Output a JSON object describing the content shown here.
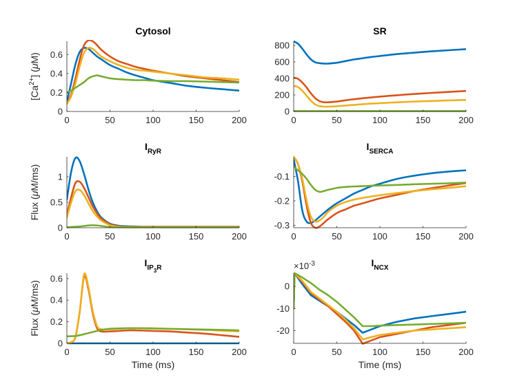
{
  "figure": {
    "series_colors": [
      "#0072BD",
      "#D95319",
      "#EDB120",
      "#77AC30"
    ]
  },
  "chart_data": [
    {
      "id": "cytosol",
      "type": "line",
      "title": "Cytosol",
      "title_main": "Cytosol",
      "title_sub": "",
      "title_subsub": "",
      "title_tail": "",
      "xlabel": "",
      "ylabel": "[Ca2+] (μM)",
      "ylabel_parts": [
        "[Ca",
        "2+",
        "] (",
        "μ",
        "M)"
      ],
      "xlim": [
        0,
        200
      ],
      "ylim": [
        0,
        0.74
      ],
      "xticks": [
        0,
        50,
        100,
        150,
        200
      ],
      "yticks": [
        0,
        0.2,
        0.4,
        0.6
      ],
      "ytick_labels": [
        "0",
        "0.2",
        "0.4",
        "0.6"
      ],
      "exponent_label": "",
      "x": [
        0,
        5,
        10,
        15,
        20,
        25,
        30,
        35,
        40,
        50,
        60,
        70,
        80,
        90,
        100,
        120,
        140,
        160,
        180,
        200
      ],
      "series": [
        {
          "name": "series-1",
          "values": [
            0.1,
            0.3,
            0.5,
            0.63,
            0.67,
            0.66,
            0.62,
            0.58,
            0.55,
            0.49,
            0.45,
            0.41,
            0.38,
            0.355,
            0.33,
            0.3,
            0.27,
            0.25,
            0.235,
            0.22
          ]
        },
        {
          "name": "series-2",
          "values": [
            0.08,
            0.18,
            0.35,
            0.55,
            0.7,
            0.75,
            0.74,
            0.7,
            0.65,
            0.58,
            0.53,
            0.5,
            0.47,
            0.45,
            0.43,
            0.4,
            0.37,
            0.35,
            0.33,
            0.31
          ]
        },
        {
          "name": "series-3",
          "values": [
            0.08,
            0.16,
            0.3,
            0.48,
            0.62,
            0.67,
            0.66,
            0.62,
            0.58,
            0.53,
            0.49,
            0.46,
            0.44,
            0.43,
            0.42,
            0.4,
            0.38,
            0.36,
            0.35,
            0.335
          ]
        },
        {
          "name": "series-4",
          "values": [
            0.2,
            0.22,
            0.25,
            0.28,
            0.31,
            0.35,
            0.37,
            0.38,
            0.37,
            0.35,
            0.34,
            0.335,
            0.33,
            0.33,
            0.325,
            0.32,
            0.32,
            0.315,
            0.31,
            0.305
          ]
        }
      ]
    },
    {
      "id": "sr",
      "type": "line",
      "title": "SR",
      "title_main": "SR",
      "title_sub": "",
      "title_subsub": "",
      "title_tail": "",
      "xlabel": "",
      "ylabel": "",
      "ylabel_parts": [],
      "xlim": [
        0,
        200
      ],
      "ylim": [
        0,
        850
      ],
      "xticks": [
        0,
        50,
        100,
        150,
        200
      ],
      "yticks": [
        0,
        200,
        400,
        600,
        800
      ],
      "ytick_labels": [
        "0",
        "200",
        "400",
        "600",
        "800"
      ],
      "exponent_label": "",
      "x": [
        0,
        5,
        10,
        15,
        20,
        25,
        30,
        35,
        40,
        50,
        60,
        70,
        80,
        90,
        100,
        120,
        140,
        160,
        180,
        200
      ],
      "series": [
        {
          "name": "series-1",
          "values": [
            850,
            820,
            760,
            690,
            630,
            595,
            585,
            580,
            580,
            590,
            610,
            630,
            645,
            660,
            672,
            695,
            712,
            728,
            742,
            755
          ]
        },
        {
          "name": "series-2",
          "values": [
            410,
            395,
            350,
            290,
            220,
            160,
            125,
            112,
            112,
            120,
            135,
            148,
            160,
            170,
            180,
            197,
            212,
            225,
            237,
            248
          ]
        },
        {
          "name": "series-3",
          "values": [
            310,
            295,
            250,
            190,
            130,
            85,
            65,
            58,
            58,
            63,
            72,
            80,
            88,
            95,
            101,
            111,
            120,
            127,
            134,
            140
          ]
        },
        {
          "name": "series-4",
          "values": [
            5,
            5,
            5,
            5,
            5,
            5,
            5,
            5,
            5,
            5,
            5,
            5,
            5,
            5,
            5,
            5,
            5,
            5,
            5,
            5
          ]
        }
      ]
    },
    {
      "id": "iryr",
      "type": "line",
      "title": "I_RyR",
      "title_main": "I",
      "title_sub": "RyR",
      "title_subsub": "",
      "title_tail": "",
      "xlabel": "",
      "ylabel": "Flux (μM/ms)",
      "ylabel_parts": [
        "Flux (",
        "",
        "",
        "μ",
        "M/ms)"
      ],
      "xlim": [
        0,
        200
      ],
      "ylim": [
        0,
        1.39
      ],
      "xticks": [
        0,
        50,
        100,
        150,
        200
      ],
      "yticks": [
        0,
        0.5,
        1
      ],
      "ytick_labels": [
        "0",
        "0.5",
        "1"
      ],
      "exponent_label": "",
      "x": [
        0,
        5,
        10,
        15,
        20,
        25,
        30,
        35,
        40,
        50,
        60,
        70,
        80,
        90,
        100,
        120,
        140,
        160,
        180,
        200
      ],
      "series": [
        {
          "name": "series-1",
          "values": [
            0.55,
            1.1,
            1.37,
            1.3,
            1.05,
            0.75,
            0.5,
            0.32,
            0.2,
            0.08,
            0.04,
            0.03,
            0.025,
            0.02,
            0.02,
            0.02,
            0.02,
            0.02,
            0.02,
            0.02
          ]
        },
        {
          "name": "series-2",
          "values": [
            0.25,
            0.6,
            0.88,
            0.9,
            0.78,
            0.6,
            0.42,
            0.28,
            0.18,
            0.07,
            0.03,
            0.02,
            0.02,
            0.02,
            0.02,
            0.02,
            0.02,
            0.02,
            0.02,
            0.02
          ]
        },
        {
          "name": "series-3",
          "values": [
            0.2,
            0.5,
            0.72,
            0.74,
            0.64,
            0.48,
            0.33,
            0.22,
            0.14,
            0.05,
            0.02,
            0.015,
            0.015,
            0.015,
            0.015,
            0.015,
            0.015,
            0.015,
            0.015,
            0.015
          ]
        },
        {
          "name": "series-4",
          "values": [
            0.01,
            0.015,
            0.02,
            0.025,
            0.035,
            0.045,
            0.05,
            0.045,
            0.035,
            0.015,
            0.01,
            0.01,
            0.01,
            0.01,
            0.01,
            0.01,
            0.01,
            0.01,
            0.01,
            0.01
          ]
        }
      ]
    },
    {
      "id": "iserca",
      "type": "line",
      "title": "I_SERCA",
      "title_main": "I",
      "title_sub": "SERCA",
      "title_subsub": "",
      "title_tail": "",
      "xlabel": "",
      "ylabel": "",
      "ylabel_parts": [],
      "xlim": [
        0,
        200
      ],
      "ylim": [
        -0.31,
        -0.02
      ],
      "xticks": [
        0,
        50,
        100,
        150,
        200
      ],
      "yticks": [
        -0.3,
        -0.2,
        -0.1
      ],
      "ytick_labels": [
        "-0.3",
        "-0.2",
        "-0.1"
      ],
      "exponent_label": "",
      "x": [
        0,
        5,
        10,
        15,
        20,
        25,
        30,
        35,
        40,
        50,
        60,
        70,
        80,
        90,
        100,
        120,
        140,
        160,
        180,
        200
      ],
      "series": [
        {
          "name": "series-1",
          "values": [
            -0.03,
            -0.12,
            -0.24,
            -0.285,
            -0.29,
            -0.28,
            -0.265,
            -0.25,
            -0.235,
            -0.21,
            -0.19,
            -0.17,
            -0.155,
            -0.14,
            -0.13,
            -0.11,
            -0.097,
            -0.087,
            -0.08,
            -0.075
          ]
        },
        {
          "name": "series-2",
          "values": [
            -0.02,
            -0.05,
            -0.12,
            -0.22,
            -0.29,
            -0.31,
            -0.305,
            -0.29,
            -0.275,
            -0.25,
            -0.235,
            -0.22,
            -0.21,
            -0.2,
            -0.19,
            -0.175,
            -0.16,
            -0.148,
            -0.137,
            -0.127
          ]
        },
        {
          "name": "series-3",
          "values": [
            -0.02,
            -0.05,
            -0.11,
            -0.2,
            -0.265,
            -0.285,
            -0.28,
            -0.265,
            -0.245,
            -0.22,
            -0.205,
            -0.195,
            -0.188,
            -0.182,
            -0.177,
            -0.168,
            -0.16,
            -0.153,
            -0.147,
            -0.14
          ]
        },
        {
          "name": "series-4",
          "values": [
            -0.06,
            -0.075,
            -0.09,
            -0.11,
            -0.135,
            -0.155,
            -0.163,
            -0.16,
            -0.155,
            -0.147,
            -0.143,
            -0.141,
            -0.14,
            -0.138,
            -0.137,
            -0.135,
            -0.132,
            -0.13,
            -0.128,
            -0.125
          ]
        }
      ]
    },
    {
      "id": "iip3r",
      "type": "line",
      "title": "I_IP3R",
      "title_main": "I",
      "title_sub": "IP",
      "title_subsub": "3",
      "title_tail": "R",
      "xlabel": "Time (ms)",
      "ylabel": "Flux (μM/ms)",
      "ylabel_parts": [
        "Flux (",
        "",
        "",
        "μ",
        "M/ms)"
      ],
      "xlim": [
        0,
        200
      ],
      "ylim": [
        0,
        0.65
      ],
      "xticks": [
        0,
        50,
        100,
        150,
        200
      ],
      "yticks": [
        0,
        0.2,
        0.4,
        0.6
      ],
      "ytick_labels": [
        "0",
        "0.2",
        "0.4",
        "0.6"
      ],
      "exponent_label": "",
      "x": [
        0,
        5,
        10,
        15,
        20,
        25,
        30,
        35,
        40,
        50,
        60,
        70,
        80,
        90,
        100,
        120,
        140,
        160,
        180,
        200
      ],
      "series": [
        {
          "name": "series-1",
          "values": [
            0,
            0,
            0,
            0,
            0,
            0,
            0,
            0,
            0,
            0,
            0,
            0,
            0,
            0,
            0,
            0,
            0,
            0,
            0,
            0
          ]
        },
        {
          "name": "series-2",
          "values": [
            0,
            0.01,
            0.06,
            0.3,
            0.62,
            0.5,
            0.28,
            0.14,
            0.11,
            0.11,
            0.115,
            0.12,
            0.12,
            0.118,
            0.115,
            0.11,
            0.1,
            0.09,
            0.075,
            0.06
          ]
        },
        {
          "name": "series-3",
          "values": [
            0,
            0.01,
            0.06,
            0.3,
            0.64,
            0.52,
            0.3,
            0.16,
            0.13,
            0.13,
            0.135,
            0.14,
            0.14,
            0.14,
            0.14,
            0.135,
            0.13,
            0.125,
            0.117,
            0.11
          ]
        },
        {
          "name": "series-4",
          "values": [
            0.065,
            0.066,
            0.068,
            0.075,
            0.085,
            0.095,
            0.105,
            0.115,
            0.125,
            0.135,
            0.138,
            0.14,
            0.14,
            0.139,
            0.137,
            0.134,
            0.131,
            0.128,
            0.125,
            0.12
          ]
        }
      ]
    },
    {
      "id": "incx",
      "type": "line",
      "title": "I_NCX",
      "title_main": "I",
      "title_sub": "NCX",
      "title_subsub": "",
      "title_tail": "",
      "xlabel": "Time (ms)",
      "ylabel": "",
      "ylabel_parts": [],
      "xlim": [
        0,
        200
      ],
      "ylim": [
        -25.8,
        6
      ],
      "xticks": [
        0,
        50,
        100,
        150,
        200
      ],
      "yticks": [
        -20,
        -10,
        0
      ],
      "ytick_labels": [
        "-20",
        "-10",
        "0"
      ],
      "exponent_label": "×10-3",
      "exponent_base": "×10",
      "exponent_power": "-3",
      "x": [
        0,
        1,
        10,
        20,
        30,
        40,
        50,
        60,
        70,
        80,
        90,
        100,
        120,
        140,
        160,
        180,
        200
      ],
      "series": [
        {
          "name": "series-1",
          "values": [
            -10,
            6,
            1,
            -4,
            -6.5,
            -9,
            -11.5,
            -14.5,
            -17.5,
            -21,
            -19.5,
            -18,
            -16,
            -14.5,
            -13.5,
            -12.5,
            -11.5
          ]
        },
        {
          "name": "series-2",
          "values": [
            -10,
            6,
            2,
            -3,
            -6,
            -9,
            -12.5,
            -16,
            -20,
            -26,
            -24.5,
            -23,
            -21.5,
            -20,
            -18.5,
            -17.5,
            -16.5
          ]
        },
        {
          "name": "series-3",
          "values": [
            -10,
            6,
            2.5,
            -2.5,
            -5.5,
            -8.5,
            -11.5,
            -15,
            -19,
            -24,
            -23,
            -22,
            -21,
            -20,
            -19.5,
            -19,
            -18.5
          ]
        },
        {
          "name": "series-4",
          "values": [
            -10,
            6,
            4,
            1.5,
            -1.5,
            -4,
            -7,
            -10.5,
            -14,
            -18,
            -18,
            -17.8,
            -17.5,
            -17.3,
            -17,
            -16.8,
            -16.5
          ]
        }
      ]
    }
  ]
}
